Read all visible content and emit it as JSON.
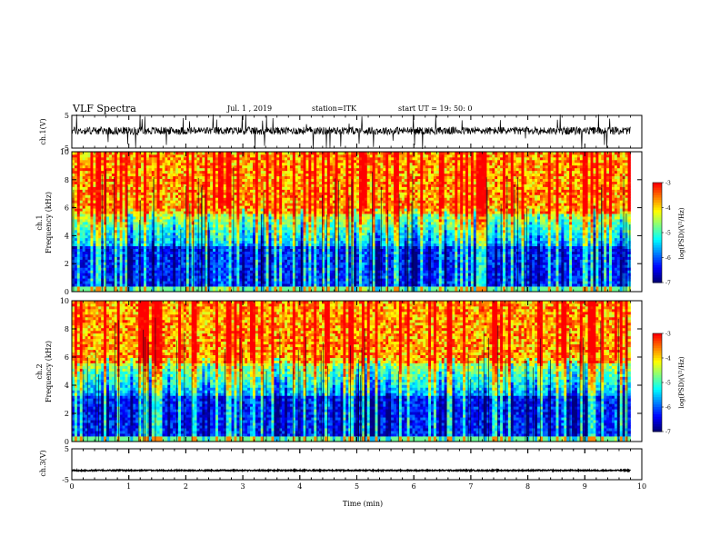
{
  "header": {
    "title": "VLF Spectra",
    "date": "Jul.  1 , 2019",
    "station": "station=ITK",
    "start": "start UT =   19: 50: 0"
  },
  "chart_data": [
    {
      "type": "line",
      "name": "ch1_waveform",
      "ylabel": "ch.1(V)",
      "ylim": [
        -5,
        5
      ],
      "yticks": [
        "5",
        "-5"
      ],
      "xlim": [
        0,
        10
      ],
      "baseline": 0.3,
      "noise_amplitude": 1.2,
      "burst_amplitude": 5,
      "duration_min": 9.8
    },
    {
      "type": "heatmap",
      "name": "ch1_spectrogram",
      "ylabel_line1": "ch.1",
      "ylabel_line2": "Frequency (kHz)",
      "ylim": [
        0,
        10
      ],
      "yticks": [
        "0",
        "2",
        "4",
        "6",
        "8",
        "10"
      ],
      "xlim": [
        0,
        10
      ],
      "duration_min": 9.8,
      "colorbar": {
        "label": "log(PSD)(V²/Hz)",
        "range": [
          -7,
          -3
        ],
        "ticks": [
          "-3",
          "-4",
          "-5",
          "-6",
          "-7"
        ]
      }
    },
    {
      "type": "heatmap",
      "name": "ch2_spectrogram",
      "ylabel_line1": "ch.2",
      "ylabel_line2": "Frequency (kHz)",
      "ylim": [
        0,
        10
      ],
      "yticks": [
        "0",
        "2",
        "4",
        "6",
        "8",
        "10"
      ],
      "xlim": [
        0,
        10
      ],
      "duration_min": 9.8,
      "colorbar": {
        "label": "log(PSD)(V²/Hz)",
        "range": [
          -7,
          -3
        ],
        "ticks": [
          "-3",
          "-4",
          "-5",
          "-6",
          "-7"
        ]
      }
    },
    {
      "type": "line",
      "name": "ch3_waveform",
      "ylabel": "ch.3(V)",
      "ylim": [
        -5,
        5
      ],
      "yticks": [
        "5",
        "-5"
      ],
      "xlim": [
        0,
        10
      ],
      "baseline": -2,
      "duration_min": 9.8
    }
  ],
  "xaxis": {
    "label": "Time (min)",
    "ticks": [
      "0",
      "1",
      "2",
      "3",
      "4",
      "5",
      "6",
      "7",
      "8",
      "9",
      "10"
    ]
  },
  "colors": {
    "colormap": [
      "#00007f",
      "#0000ff",
      "#0080ff",
      "#00ffff",
      "#80ff80",
      "#ffff00",
      "#ff8000",
      "#ff0000"
    ]
  }
}
